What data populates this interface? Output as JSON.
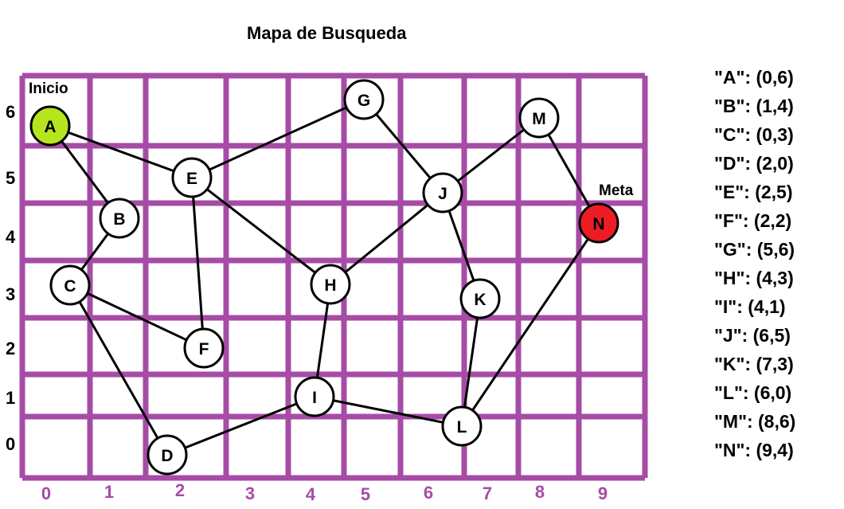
{
  "title": "Mapa de Busqueda",
  "colors": {
    "grid": "#a64ca6",
    "edge": "#000000",
    "node_fill": "#ffffff",
    "start_fill": "#b5e61d",
    "goal_fill": "#ed1c24"
  },
  "grid": {
    "x_ticks": [
      "0",
      "1",
      "2",
      "3",
      "4",
      "5",
      "6",
      "7",
      "8",
      "9"
    ],
    "y_ticks": [
      "6",
      "5",
      "4",
      "3",
      "2",
      "1",
      "0"
    ]
  },
  "start_label": "Inicio",
  "goal_label": "Meta",
  "nodes": [
    {
      "id": "A",
      "role": "start"
    },
    {
      "id": "B",
      "role": "normal"
    },
    {
      "id": "C",
      "role": "normal"
    },
    {
      "id": "D",
      "role": "normal"
    },
    {
      "id": "E",
      "role": "normal"
    },
    {
      "id": "F",
      "role": "normal"
    },
    {
      "id": "G",
      "role": "normal"
    },
    {
      "id": "H",
      "role": "normal"
    },
    {
      "id": "I",
      "role": "normal"
    },
    {
      "id": "J",
      "role": "normal"
    },
    {
      "id": "K",
      "role": "normal"
    },
    {
      "id": "L",
      "role": "normal"
    },
    {
      "id": "M",
      "role": "normal"
    },
    {
      "id": "N",
      "role": "goal"
    }
  ],
  "edges": [
    [
      "A",
      "E"
    ],
    [
      "A",
      "B"
    ],
    [
      "B",
      "C"
    ],
    [
      "C",
      "F"
    ],
    [
      "C",
      "D"
    ],
    [
      "E",
      "F"
    ],
    [
      "E",
      "G"
    ],
    [
      "E",
      "H"
    ],
    [
      "G",
      "J"
    ],
    [
      "J",
      "H"
    ],
    [
      "J",
      "M"
    ],
    [
      "J",
      "K"
    ],
    [
      "M",
      "N"
    ],
    [
      "N",
      "L"
    ],
    [
      "K",
      "L"
    ],
    [
      "H",
      "I"
    ],
    [
      "I",
      "D"
    ],
    [
      "I",
      "L"
    ]
  ],
  "legend": [
    "\"A\": (0,6)",
    "\"B\": (1,4)",
    "\"C\": (0,3)",
    "\"D\": (2,0)",
    "\"E\": (2,5)",
    "\"F\": (2,2)",
    "\"G\": (5,6)",
    "\"H\": (4,3)",
    "\"I\": (4,1)",
    "\"J\": (6,5)",
    "\"K\": (7,3)",
    "\"L\": (6,0)",
    "\"M\": (8,6)",
    "\"N\": (9,4)"
  ]
}
